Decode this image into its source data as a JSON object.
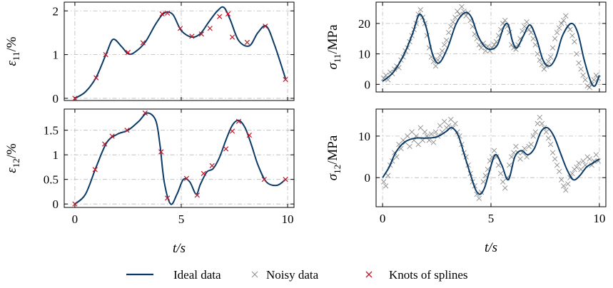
{
  "legend": {
    "ideal": "Ideal data",
    "noisy": "Noisy data",
    "knots": "Knots of splines"
  },
  "colors": {
    "ideal": "#0b3a66",
    "noisy": "#8c8c8c",
    "knots": "#c0182a",
    "grid": "#b8b8b8"
  },
  "chart_data": [
    {
      "type": "line",
      "panel": "top-left",
      "ylabel_main": "ε",
      "ylabel_sub": "11",
      "ylabel_unit": "/%",
      "xlabel": "",
      "xlim": [
        -0.5,
        10.3
      ],
      "ylim": [
        -0.05,
        2.2
      ],
      "xticks": [],
      "yticks": [
        0,
        1,
        2
      ],
      "ytick_labels": [
        "0",
        "1",
        "2"
      ],
      "grid": true,
      "series": [
        {
          "role": "ideal",
          "x": [
            0,
            0.5,
            1,
            1.5,
            1.8,
            2.2,
            2.5,
            2.8,
            3.3,
            3.8,
            4.2,
            4.6,
            5.0,
            5.5,
            5.9,
            6.3,
            6.7,
            7.0,
            7.3,
            7.7,
            8.2,
            8.6,
            9.0,
            9.4,
            9.9
          ],
          "y": [
            0,
            0.15,
            0.48,
            1.05,
            1.35,
            1.18,
            1.02,
            1.05,
            1.28,
            1.7,
            1.95,
            1.92,
            1.55,
            1.4,
            1.48,
            1.75,
            2.0,
            2.08,
            1.8,
            1.32,
            1.2,
            1.5,
            1.65,
            1.2,
            0.45
          ]
        },
        {
          "role": "knots",
          "x": [
            0,
            1.0,
            1.45,
            2.5,
            3.2,
            4.1,
            4.35,
            4.95,
            5.5,
            5.95,
            6.35,
            6.8,
            7.2,
            7.4,
            8.1,
            8.95,
            9.9
          ],
          "y": [
            0,
            0.47,
            1.0,
            1.05,
            1.27,
            1.93,
            1.95,
            1.6,
            1.42,
            1.47,
            1.6,
            1.87,
            1.93,
            1.4,
            1.28,
            1.65,
            0.43
          ]
        }
      ]
    },
    {
      "type": "line",
      "panel": "bottom-left",
      "ylabel_main": "ε",
      "ylabel_sub": "12",
      "ylabel_unit": "/%",
      "xlabel": "t/s",
      "xlim": [
        -0.5,
        10.3
      ],
      "ylim": [
        -0.07,
        1.93
      ],
      "xticks": [
        0,
        5,
        10
      ],
      "xtick_labels": [
        "0",
        "5",
        "10"
      ],
      "yticks": [
        0,
        0.5,
        1,
        1.5
      ],
      "ytick_labels": [
        "0",
        "0.5",
        "1",
        "1.5"
      ],
      "grid": true,
      "series": [
        {
          "role": "ideal",
          "x": [
            0,
            0.5,
            1.0,
            1.5,
            2.0,
            2.5,
            3.0,
            3.4,
            3.8,
            4.0,
            4.2,
            4.5,
            4.8,
            5.1,
            5.4,
            5.7,
            5.9,
            6.2,
            6.5,
            6.8,
            7.1,
            7.4,
            7.7,
            8.0,
            8.3,
            8.6,
            9.0,
            9.5,
            9.9
          ],
          "y": [
            0,
            0.2,
            0.75,
            1.25,
            1.42,
            1.5,
            1.68,
            1.85,
            1.7,
            1.2,
            0.45,
            0.0,
            0.2,
            0.5,
            0.45,
            0.2,
            0.4,
            0.65,
            0.72,
            0.95,
            1.3,
            1.6,
            1.7,
            1.55,
            1.2,
            0.8,
            0.45,
            0.38,
            0.5
          ]
        },
        {
          "role": "knots",
          "x": [
            0,
            0.95,
            1.4,
            1.75,
            2.45,
            3.3,
            4.05,
            4.35,
            5.25,
            5.75,
            6.05,
            6.45,
            7.1,
            7.4,
            7.7,
            8.2,
            8.9,
            9.9
          ],
          "y": [
            0,
            0.7,
            1.22,
            1.38,
            1.5,
            1.85,
            1.06,
            0.12,
            0.52,
            0.18,
            0.62,
            0.78,
            1.12,
            1.48,
            1.68,
            1.4,
            0.5,
            0.5
          ]
        }
      ]
    },
    {
      "type": "scatter",
      "panel": "top-right",
      "ylabel_main": "σ",
      "ylabel_sub": "11",
      "ylabel_unit": "/MPa",
      "xlabel": "",
      "xlim": [
        -0.3,
        10.3
      ],
      "ylim": [
        -2.5,
        27
      ],
      "xticks": [],
      "yticks": [
        0,
        10,
        20
      ],
      "ytick_labels": [
        "0",
        "10",
        "20"
      ],
      "grid": true,
      "series": [
        {
          "role": "ideal",
          "x": [
            0,
            0.5,
            1.0,
            1.4,
            1.7,
            2.0,
            2.3,
            2.6,
            3.0,
            3.4,
            3.8,
            4.1,
            4.4,
            4.7,
            5.0,
            5.3,
            5.6,
            5.8,
            6.0,
            6.2,
            6.5,
            6.8,
            7.1,
            7.4,
            7.7,
            8.0,
            8.3,
            8.7,
            9.0,
            9.3,
            9.6,
            9.8,
            10.0
          ],
          "y": [
            1,
            4,
            10,
            17,
            23,
            19,
            10,
            7,
            12,
            20,
            23.5,
            22,
            16,
            12.5,
            11.5,
            13,
            19,
            19.5,
            14,
            12,
            16,
            19.5,
            15,
            8,
            6,
            9,
            16,
            20,
            17,
            8,
            1,
            -0.5,
            3
          ]
        },
        {
          "role": "noisy",
          "x": [
            0.05,
            0.15,
            0.25,
            0.35,
            0.45,
            0.55,
            0.65,
            0.75,
            0.85,
            0.95,
            1.05,
            1.15,
            1.25,
            1.35,
            1.45,
            1.55,
            1.65,
            1.75,
            1.85,
            1.95,
            2.05,
            2.15,
            2.25,
            2.35,
            2.45,
            2.55,
            2.65,
            2.75,
            2.85,
            2.95,
            3.05,
            3.15,
            3.25,
            3.35,
            3.45,
            3.55,
            3.65,
            3.75,
            3.85,
            3.95,
            4.05,
            4.15,
            4.25,
            4.35,
            4.45,
            4.55,
            4.65,
            4.75,
            4.85,
            4.95,
            5.05,
            5.15,
            5.25,
            5.35,
            5.45,
            5.55,
            5.65,
            5.75,
            5.85,
            5.95,
            6.05,
            6.15,
            6.25,
            6.35,
            6.45,
            6.55,
            6.65,
            6.75,
            6.85,
            6.95,
            7.05,
            7.15,
            7.25,
            7.35,
            7.45,
            7.55,
            7.65,
            7.75,
            7.85,
            7.95,
            8.05,
            8.15,
            8.25,
            8.35,
            8.45,
            8.55,
            8.65,
            8.75,
            8.85,
            8.95,
            9.05,
            9.15,
            9.25,
            9.35,
            9.45,
            9.55,
            9.65,
            9.75,
            9.85,
            9.95
          ],
          "y": [
            2,
            3,
            1.5,
            4,
            3.5,
            5,
            6,
            5.5,
            8,
            9,
            11,
            12,
            14,
            16,
            18,
            20,
            23,
            24.5,
            22,
            20,
            16,
            12,
            9,
            7.5,
            6,
            8,
            9.5,
            11,
            13,
            14.5,
            17,
            19,
            20.5,
            22,
            24,
            23,
            25.5,
            24,
            22.5,
            23.5,
            21,
            19,
            16.5,
            15,
            13,
            12,
            13.5,
            11,
            12.5,
            11,
            12,
            13,
            14,
            16,
            18,
            20,
            21,
            19,
            17,
            13,
            12,
            11.5,
            13,
            15,
            17.5,
            19,
            20.5,
            18,
            17,
            15,
            13,
            10,
            8,
            6.5,
            5,
            6,
            7.5,
            9,
            12,
            15,
            17,
            18.5,
            20,
            21,
            22.5,
            19,
            18,
            16,
            14,
            10,
            7,
            5,
            3,
            1.5,
            -0.5,
            -1,
            0,
            1.5,
            3,
            2
          ]
        }
      ]
    },
    {
      "type": "scatter",
      "panel": "bottom-right",
      "ylabel_main": "σ",
      "ylabel_sub": "12",
      "ylabel_unit": "/MPa",
      "xlabel": "t/s",
      "xlim": [
        -0.3,
        10.3
      ],
      "ylim": [
        -7,
        16.5
      ],
      "xticks": [
        0,
        5,
        10
      ],
      "xtick_labels": [
        "0",
        "5",
        "10"
      ],
      "yticks": [
        0,
        10
      ],
      "ytick_labels": [
        "0",
        "10"
      ],
      "grid": true,
      "series": [
        {
          "role": "ideal",
          "x": [
            0,
            0.3,
            0.6,
            1.0,
            1.5,
            2.0,
            2.5,
            2.9,
            3.2,
            3.5,
            3.8,
            4.1,
            4.3,
            4.5,
            4.7,
            4.9,
            5.2,
            5.5,
            5.8,
            6.1,
            6.4,
            6.7,
            7.0,
            7.3,
            7.6,
            7.9,
            8.2,
            8.5,
            8.8,
            9.1,
            9.4,
            9.7,
            10.0
          ],
          "y": [
            0,
            2.5,
            6,
            8.5,
            9.5,
            9.5,
            9.8,
            11,
            12,
            10,
            5,
            0,
            -3,
            -4,
            -2.5,
            1,
            5.5,
            3,
            -0.5,
            5,
            6.5,
            5.5,
            7,
            11,
            12,
            10,
            6,
            2,
            -0.5,
            0.5,
            2.5,
            3.5,
            4.5
          ]
        },
        {
          "role": "noisy",
          "x": [
            0.05,
            0.15,
            0.25,
            0.35,
            0.45,
            0.55,
            0.65,
            0.75,
            0.85,
            0.95,
            1.05,
            1.15,
            1.25,
            1.35,
            1.45,
            1.55,
            1.65,
            1.75,
            1.85,
            1.95,
            2.05,
            2.15,
            2.25,
            2.35,
            2.45,
            2.55,
            2.65,
            2.75,
            2.85,
            2.95,
            3.05,
            3.15,
            3.25,
            3.35,
            3.45,
            3.55,
            3.65,
            3.75,
            3.85,
            3.95,
            4.05,
            4.15,
            4.25,
            4.35,
            4.45,
            4.55,
            4.65,
            4.75,
            4.85,
            4.95,
            5.05,
            5.15,
            5.25,
            5.35,
            5.45,
            5.55,
            5.65,
            5.75,
            5.85,
            5.95,
            6.05,
            6.15,
            6.25,
            6.35,
            6.45,
            6.55,
            6.65,
            6.75,
            6.85,
            6.95,
            7.05,
            7.15,
            7.25,
            7.35,
            7.45,
            7.55,
            7.65,
            7.75,
            7.85,
            7.95,
            8.05,
            8.15,
            8.25,
            8.35,
            8.45,
            8.55,
            8.65,
            8.75,
            8.85,
            8.95,
            9.05,
            9.15,
            9.25,
            9.35,
            9.45,
            9.55,
            9.65,
            9.75,
            9.85,
            9.95
          ],
          "y": [
            -1,
            -2,
            0.5,
            3,
            4,
            6,
            5,
            8,
            7,
            9,
            8.5,
            10,
            7.5,
            11,
            9,
            10,
            8,
            12,
            9,
            11,
            10,
            9,
            10.5,
            8.5,
            11,
            10,
            12.5,
            11,
            13.5,
            12,
            12.5,
            14,
            12,
            13,
            11,
            10,
            8,
            6,
            5,
            3,
            1,
            -1,
            -2,
            -4,
            -5,
            -3.5,
            -1,
            0.5,
            2,
            4,
            5,
            6.5,
            5,
            3,
            1,
            -1,
            -2.5,
            0,
            3,
            5,
            6,
            7.5,
            6,
            4.5,
            6,
            7,
            5,
            7.5,
            8,
            10,
            11,
            13,
            14.5,
            13,
            12,
            11,
            9.5,
            8,
            6,
            4.5,
            3,
            1.5,
            -0.5,
            -2,
            -3,
            -1.5,
            0,
            1,
            2,
            2.5,
            3.5,
            2,
            4,
            3,
            5,
            4.5,
            3,
            4,
            5.5,
            4
          ]
        }
      ]
    }
  ]
}
